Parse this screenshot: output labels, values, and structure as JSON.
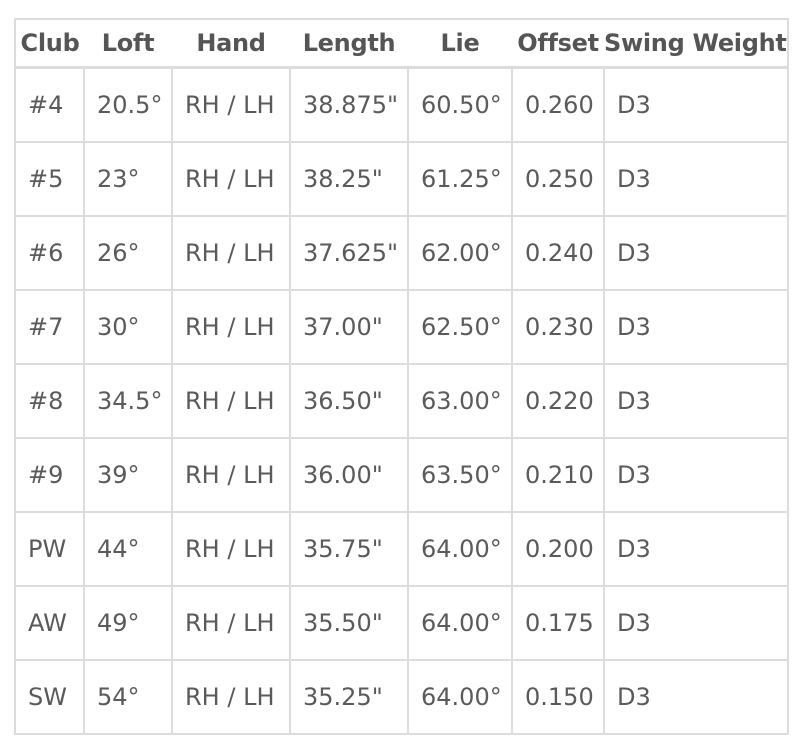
{
  "table": {
    "headers": [
      "Club",
      "Loft",
      "Hand",
      "Length",
      "Lie",
      "Offset",
      "Swing Weight"
    ],
    "rows": [
      [
        "#4",
        "20.5°",
        "RH / LH",
        "38.875\"",
        "60.50°",
        "0.260",
        "D3"
      ],
      [
        "#5",
        "23°",
        "RH / LH",
        "38.25\"",
        "61.25°",
        "0.250",
        "D3"
      ],
      [
        "#6",
        "26°",
        "RH / LH",
        "37.625\"",
        "62.00°",
        "0.240",
        "D3"
      ],
      [
        "#7",
        "30°",
        "RH / LH",
        "37.00\"",
        "62.50°",
        "0.230",
        "D3"
      ],
      [
        "#8",
        "34.5°",
        "RH / LH",
        "36.50\"",
        "63.00°",
        "0.220",
        "D3"
      ],
      [
        "#9",
        "39°",
        "RH / LH",
        "36.00\"",
        "63.50°",
        "0.210",
        "D3"
      ],
      [
        "PW",
        "44°",
        "RH / LH",
        "35.75\"",
        "64.00°",
        "0.200",
        "D3"
      ],
      [
        "AW",
        "49°",
        "RH / LH",
        "35.50\"",
        "64.00°",
        "0.175",
        "D3"
      ],
      [
        "SW",
        "54°",
        "RH / LH",
        "35.25\"",
        "64.00°",
        "0.150",
        "D3"
      ]
    ]
  }
}
